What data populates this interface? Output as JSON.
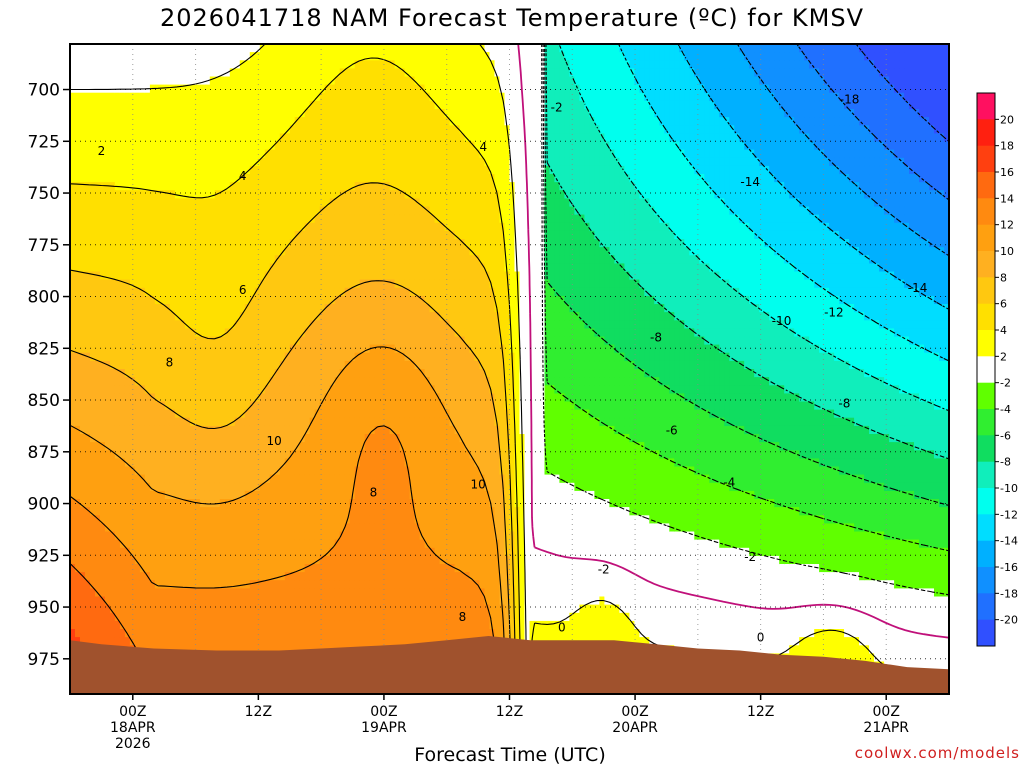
{
  "title": "2026041718 NAM Forecast Temperature (ºC) for KMSV",
  "xaxis_title": "Forecast Time (UTC)",
  "credit": "coolwx.com/models",
  "chart_data": {
    "type": "contour-cross-section",
    "title": "2026041718 NAM Forecast Temperature (ºC) for KMSV",
    "xlabel": "Forecast Time (UTC)",
    "ylabel": "",
    "y_ticks": [
      "700",
      "725",
      "750",
      "775",
      "800",
      "825",
      "850",
      "875",
      "900",
      "925",
      "950",
      "975"
    ],
    "y_tick_values": [
      700,
      725,
      750,
      775,
      800,
      825,
      850,
      875,
      900,
      925,
      950,
      975
    ],
    "ylim": [
      678,
      992
    ],
    "x_tick_labels": [
      {
        "time": "00Z",
        "date": "18APR",
        "year": "2026"
      },
      {
        "time": "12Z",
        "date": "",
        "year": ""
      },
      {
        "time": "00Z",
        "date": "19APR",
        "year": ""
      },
      {
        "time": "12Z",
        "date": "",
        "year": ""
      },
      {
        "time": "00Z",
        "date": "20APR",
        "year": ""
      },
      {
        "time": "12Z",
        "date": "",
        "year": ""
      },
      {
        "time": "00Z",
        "date": "21APR",
        "year": ""
      }
    ],
    "x_tick_hours": [
      6,
      18,
      30,
      42,
      54,
      66,
      78
    ],
    "xlim": [
      0,
      84
    ],
    "colorbar": {
      "labels": [
        "20",
        "18",
        "16",
        "14",
        "12",
        "10",
        "8",
        "6",
        "4",
        "2",
        "-2",
        "-4",
        "-6",
        "-8",
        "-10",
        "-12",
        "-14",
        "-16",
        "-18",
        "-20"
      ],
      "colors": [
        "#ff1060",
        "#ff2010",
        "#ff4010",
        "#ff6a10",
        "#ff8a10",
        "#ffa010",
        "#ffb020",
        "#ffc810",
        "#ffe000",
        "#ffff00",
        "#ffffff",
        "#60ff00",
        "#30ee30",
        "#10dd60",
        "#10eebb",
        "#00ffee",
        "#00ddff",
        "#00b0ff",
        "#1090ff",
        "#2070ff",
        "#3050ff"
      ]
    },
    "contour_labels": [
      {
        "text": "2",
        "hour": 3,
        "p": 730
      },
      {
        "text": "4",
        "hour": 16.5,
        "p": 742
      },
      {
        "text": "6",
        "hour": 16.5,
        "p": 797
      },
      {
        "text": "8",
        "hour": 9.5,
        "p": 832
      },
      {
        "text": "10",
        "hour": 19.5,
        "p": 870
      },
      {
        "text": "8",
        "hour": 29,
        "p": 895
      },
      {
        "text": "10",
        "hour": 39,
        "p": 891
      },
      {
        "text": "8",
        "hour": 37.5,
        "p": 955
      },
      {
        "text": "4",
        "hour": 39.5,
        "p": 728
      },
      {
        "text": "-2",
        "hour": 46.5,
        "p": 709
      },
      {
        "text": "0",
        "hour": 47,
        "p": 960
      },
      {
        "text": "-2",
        "hour": 51,
        "p": 932
      },
      {
        "text": "-8",
        "hour": 56,
        "p": 820
      },
      {
        "text": "-6",
        "hour": 57.5,
        "p": 865
      },
      {
        "text": "-4",
        "hour": 63,
        "p": 890
      },
      {
        "text": "-14",
        "hour": 65,
        "p": 745
      },
      {
        "text": "-10",
        "hour": 68,
        "p": 812
      },
      {
        "text": "-12",
        "hour": 73,
        "p": 808
      },
      {
        "text": "-18",
        "hour": 74.5,
        "p": 705
      },
      {
        "text": "-8",
        "hour": 74,
        "p": 852
      },
      {
        "text": "-2",
        "hour": 65,
        "p": 926
      },
      {
        "text": "0",
        "hour": 66,
        "p": 965
      },
      {
        "text": "-14",
        "hour": 81,
        "p": 796
      }
    ],
    "terrain_color": "#a0522d",
    "grid": true
  }
}
